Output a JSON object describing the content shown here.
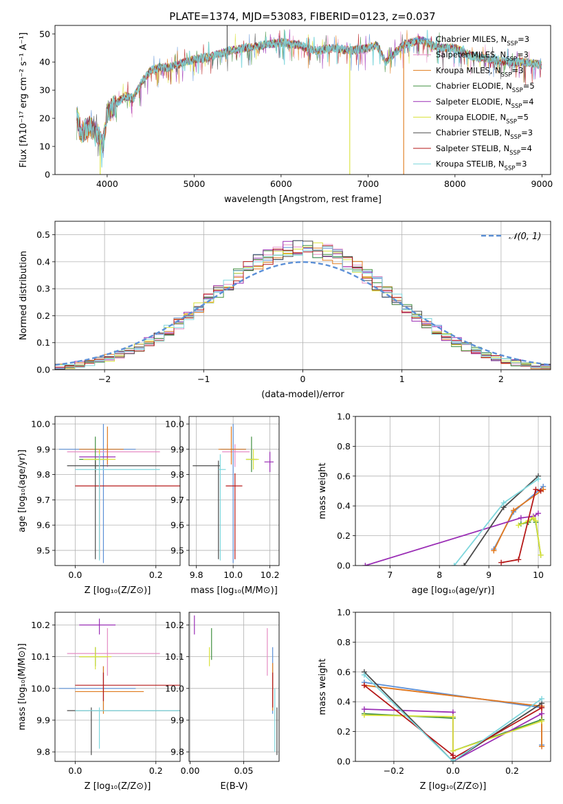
{
  "figure": {
    "title": "PLATE=1374, MJD=53083, FIBERID=0123, z=0.037"
  },
  "chart_data": [
    {
      "id": "spectrum",
      "type": "line",
      "title": "PLATE=1374, MJD=53083, FIBERID=0123, z=0.037",
      "xlabel": "wavelength [Angstrom, rest frame]",
      "ylabel": "Flux [fλ10⁻¹⁷ erg cm⁻² s⁻¹ A⁻¹]",
      "xlim": [
        3400,
        9100
      ],
      "ylim": [
        0,
        53
      ],
      "xticks": [
        4000,
        5000,
        6000,
        7000,
        8000,
        9000
      ],
      "yticks": [
        0,
        10,
        20,
        30,
        40,
        50
      ],
      "grid": false,
      "legend_position": "right",
      "continuum": {
        "x": [
          3650,
          3700,
          3800,
          3900,
          3950,
          4000,
          4100,
          4200,
          4300,
          4400,
          4500,
          4600,
          4700,
          4800,
          4900,
          5000,
          5200,
          5400,
          5600,
          5800,
          6000,
          6200,
          6400,
          6600,
          6800,
          7000,
          7100,
          7200,
          7400,
          7600,
          7800,
          8000,
          8200,
          8400,
          8600,
          8800,
          9000
        ],
        "y": [
          21,
          15,
          17,
          14,
          10,
          22,
          25,
          28,
          27,
          33,
          37,
          38,
          38,
          39,
          40,
          41,
          42,
          44,
          45,
          46,
          47,
          46,
          44,
          45,
          44,
          45,
          46,
          40,
          46,
          48,
          45,
          45,
          42,
          41,
          40,
          40,
          39
        ]
      },
      "series": [
        {
          "name": "Chabrier MILES, N_SSP=3",
          "color": "#5b8fd6"
        },
        {
          "name": "Salpeter MILES, N_SSP=3",
          "color": "#e58bc4"
        },
        {
          "name": "Kroupa MILES, N_SSP=3",
          "color": "#e07b1c"
        },
        {
          "name": "Chabrier ELODIE, N_SSP=5",
          "color": "#3f8f3f"
        },
        {
          "name": "Salpeter ELODIE, N_SSP=4",
          "color": "#9a2db5"
        },
        {
          "name": "Kroupa ELODIE, N_SSP=5",
          "color": "#d9e23a"
        },
        {
          "name": "Chabrier STELIB, N_SSP=3",
          "color": "#4a4a4a"
        },
        {
          "name": "Salpeter STELIB, N_SSP=4",
          "color": "#b51818"
        },
        {
          "name": "Kroupa STELIB, N_SSP=3",
          "color": "#7dd6dc"
        }
      ]
    },
    {
      "id": "residuals",
      "type": "histogram",
      "xlabel": "(data-model)/error",
      "ylabel": "Normed distribution",
      "xlim": [
        -2.5,
        2.5
      ],
      "ylim": [
        0,
        0.55
      ],
      "xticks": [
        -2,
        -1,
        0,
        1,
        2
      ],
      "yticks": [
        0.0,
        0.1,
        0.2,
        0.3,
        0.4,
        0.5
      ],
      "grid": true,
      "bin_width": 0.1,
      "legend": "𝒩(0, 1)",
      "legend_position": "top-right",
      "gaussian": {
        "mean": 0,
        "sigma": 1,
        "color": "#5b8fd6"
      }
    },
    {
      "id": "age-vs-Z",
      "type": "errorbar",
      "xlabel": "Z [log₁₀(Z/Z⊙)]",
      "ylabel": "age  [log₁₀(age/yr)]",
      "xlim": [
        -0.05,
        0.26
      ],
      "ylim": [
        9.44,
        10.03
      ],
      "xticks": [
        0.0,
        0.2
      ],
      "yticks": [
        9.5,
        9.6,
        9.7,
        9.8,
        9.9,
        10.0
      ],
      "grid": true,
      "points": [
        {
          "x": 0.07,
          "y": 9.9,
          "xerr": [
            0.11,
            0.08
          ],
          "yerr": [
            0.45,
            0.1
          ],
          "color": "#5b8fd6"
        },
        {
          "x": 0.08,
          "y": 9.89,
          "xerr": [
            0.1,
            0.13
          ],
          "yerr": [
            0.06,
            0.03
          ],
          "color": "#e58bc4"
        },
        {
          "x": 0.08,
          "y": 9.9,
          "xerr": [
            0.07,
            0.04
          ],
          "yerr": [
            0.06,
            0.09
          ],
          "color": "#e07b1c"
        },
        {
          "x": 0.05,
          "y": 9.86,
          "xerr": [
            0.04,
            0.03
          ],
          "yerr": [
            0.05,
            0.09
          ],
          "color": "#3f8f3f"
        },
        {
          "x": 0.06,
          "y": 9.87,
          "xerr": [
            0.05,
            0.04
          ],
          "yerr": [
            0.03,
            0.03
          ],
          "color": "#9a2db5"
        },
        {
          "x": 0.06,
          "y": 9.86,
          "xerr": [
            0.04,
            0.04
          ],
          "yerr": [
            0.04,
            0.04
          ],
          "color": "#d9e23a"
        },
        {
          "x": 0.05,
          "y": 9.835,
          "xerr": [
            0.07,
            0.21
          ],
          "yerr": [
            0.37,
            0.02
          ],
          "color": "#4a4a4a"
        },
        {
          "x": 0.06,
          "y": 9.755,
          "xerr": [
            0.06,
            0.2
          ],
          "yerr": [
            0.29,
            0.05
          ],
          "color": "#b51818"
        },
        {
          "x": 0.06,
          "y": 9.82,
          "xerr": [
            0.06,
            0.15
          ],
          "yerr": [
            0.36,
            0.06
          ],
          "color": "#7dd6dc"
        }
      ]
    },
    {
      "id": "age-vs-mass",
      "type": "errorbar",
      "xlabel": "mass [log₁₀(M/M⊙)]",
      "ylabel": "",
      "xlim": [
        9.76,
        10.25
      ],
      "ylim": [
        9.44,
        10.03
      ],
      "xticks": [
        9.8,
        10.0,
        10.2
      ],
      "yticks": [
        9.5,
        9.6,
        9.7,
        9.8,
        9.9,
        10.0
      ],
      "grid": true,
      "points": [
        {
          "x": 10.0,
          "y": 9.9,
          "xerr": [
            0.07,
            0.07
          ],
          "yerr": [
            0.45,
            0.1
          ],
          "color": "#5b8fd6"
        },
        {
          "x": 10.01,
          "y": 9.89,
          "xerr": [
            0.07,
            0.08
          ],
          "yerr": [
            0.06,
            0.03
          ],
          "color": "#e58bc4"
        },
        {
          "x": 9.99,
          "y": 9.9,
          "xerr": [
            0.07,
            0.08
          ],
          "yerr": [
            0.06,
            0.09
          ],
          "color": "#e07b1c"
        },
        {
          "x": 10.1,
          "y": 9.86,
          "xerr": [
            0.03,
            0.03
          ],
          "yerr": [
            0.05,
            0.09
          ],
          "color": "#3f8f3f"
        },
        {
          "x": 10.2,
          "y": 9.85,
          "xerr": [
            0.03,
            0.02
          ],
          "yerr": [
            0.04,
            0.04
          ],
          "color": "#9a2db5"
        },
        {
          "x": 10.11,
          "y": 9.86,
          "xerr": [
            0.04,
            0.03
          ],
          "yerr": [
            0.04,
            0.04
          ],
          "color": "#d9e23a"
        },
        {
          "x": 9.92,
          "y": 9.835,
          "xerr": [
            0.14,
            0.01
          ],
          "yerr": [
            0.37,
            0.02
          ],
          "color": "#4a4a4a"
        },
        {
          "x": 10.01,
          "y": 9.755,
          "xerr": [
            0.05,
            0.04
          ],
          "yerr": [
            0.29,
            0.05
          ],
          "color": "#b51818"
        },
        {
          "x": 9.93,
          "y": 9.82,
          "xerr": [
            0.01,
            0.03
          ],
          "yerr": [
            0.36,
            0.06
          ],
          "color": "#7dd6dc"
        }
      ]
    },
    {
      "id": "mass-weight-vs-age",
      "type": "line",
      "xlabel": "age  [log₁₀(age/yr)]",
      "ylabel": "mass weight",
      "xlim": [
        6.3,
        10.25
      ],
      "ylim": [
        0,
        1
      ],
      "xticks": [
        7,
        8,
        9,
        10
      ],
      "yticks": [
        0.0,
        0.2,
        0.4,
        0.6,
        0.8,
        1.0
      ],
      "grid": true,
      "marker": "+",
      "series": [
        {
          "color": "#5b8fd6",
          "x": [
            9.1,
            9.5,
            10.1
          ],
          "y": [
            0.11,
            0.36,
            0.53
          ]
        },
        {
          "color": "#e58bc4",
          "x": [
            9.1,
            9.5,
            10.1
          ],
          "y": [
            0.1,
            0.37,
            0.51
          ]
        },
        {
          "color": "#e07b1c",
          "x": [
            9.1,
            9.5,
            10.1
          ],
          "y": [
            0.1,
            0.37,
            0.51
          ]
        },
        {
          "color": "#3f8f3f",
          "x": [
            9.65,
            9.8,
            9.9,
            9.95,
            10.05
          ],
          "y": [
            0.28,
            0.29,
            0.32,
            0.29,
            0.07
          ]
        },
        {
          "color": "#9a2db5",
          "x": [
            6.5,
            9.65,
            9.9,
            10.0
          ],
          "y": [
            0.0,
            0.32,
            0.33,
            0.35
          ]
        },
        {
          "color": "#d9e23a",
          "x": [
            9.6,
            9.8,
            9.9,
            9.95,
            10.05
          ],
          "y": [
            0.27,
            0.3,
            0.32,
            0.3,
            0.07
          ]
        },
        {
          "color": "#4a4a4a",
          "x": [
            8.5,
            9.3,
            10.0
          ],
          "y": [
            0.0,
            0.39,
            0.6
          ]
        },
        {
          "color": "#b51818",
          "x": [
            9.25,
            9.6,
            9.95,
            10.05
          ],
          "y": [
            0.02,
            0.04,
            0.51,
            0.5
          ]
        },
        {
          "color": "#7dd6dc",
          "x": [
            8.3,
            9.3,
            10.0
          ],
          "y": [
            0.0,
            0.42,
            0.58
          ]
        }
      ]
    },
    {
      "id": "mass-vs-Z",
      "type": "errorbar",
      "xlabel": "Z [log₁₀(Z/Z⊙)]",
      "ylabel": "mass [log₁₀(M/M⊙)]",
      "xlim": [
        -0.05,
        0.26
      ],
      "ylim": [
        9.77,
        10.24
      ],
      "xticks": [
        0.0,
        0.2
      ],
      "yticks": [
        9.8,
        9.9,
        10.0,
        10.1,
        10.2
      ],
      "grid": true,
      "points": [
        {
          "x": 0.07,
          "y": 10.0,
          "xerr": [
            0.11,
            0.08
          ],
          "yerr": [
            0.07,
            0.07
          ],
          "color": "#5b8fd6"
        },
        {
          "x": 0.08,
          "y": 10.11,
          "xerr": [
            0.1,
            0.13
          ],
          "yerr": [
            0.07,
            0.08
          ],
          "color": "#e58bc4"
        },
        {
          "x": 0.07,
          "y": 9.99,
          "xerr": [
            0.07,
            0.1
          ],
          "yerr": [
            0.07,
            0.08
          ],
          "color": "#e07b1c"
        },
        {
          "x": 0.05,
          "y": 10.1,
          "xerr": [
            0.04,
            0.03
          ],
          "yerr": [
            0.03,
            0.03
          ],
          "color": "#3f8f3f"
        },
        {
          "x": 0.06,
          "y": 10.2,
          "xerr": [
            0.05,
            0.04
          ],
          "yerr": [
            0.03,
            0.02
          ],
          "color": "#9a2db5"
        },
        {
          "x": 0.05,
          "y": 10.1,
          "xerr": [
            0.04,
            0.04
          ],
          "yerr": [
            0.04,
            0.03
          ],
          "color": "#d9e23a"
        },
        {
          "x": 0.04,
          "y": 9.93,
          "xerr": [
            0.06,
            0.22
          ],
          "yerr": [
            0.14,
            0.01
          ],
          "color": "#4a4a4a"
        },
        {
          "x": 0.07,
          "y": 10.01,
          "xerr": [
            0.07,
            0.19
          ],
          "yerr": [
            0.05,
            0.04
          ],
          "color": "#b51818"
        },
        {
          "x": 0.06,
          "y": 9.93,
          "xerr": [
            0.06,
            0.2
          ],
          "yerr": [
            0.12,
            0.01
          ],
          "color": "#7dd6dc"
        }
      ]
    },
    {
      "id": "mass-vs-EBV",
      "type": "errorbar",
      "xlabel": "E(B-V)",
      "ylabel": "",
      "xlim": [
        -0.001,
        0.083
      ],
      "ylim": [
        9.77,
        10.24
      ],
      "xticks": [
        0.0,
        0.05
      ],
      "yticks": [
        9.8,
        9.9,
        10.0,
        10.1,
        10.2
      ],
      "grid": true,
      "points": [
        {
          "x": 0.077,
          "y": 10.02,
          "xerr": [
            0,
            0
          ],
          "yerr": [
            0.1,
            0.11
          ],
          "color": "#5b8fd6"
        },
        {
          "x": 0.072,
          "y": 10.11,
          "xerr": [
            0,
            0
          ],
          "yerr": [
            0.07,
            0.08
          ],
          "color": "#e58bc4"
        },
        {
          "x": 0.077,
          "y": 10.0,
          "xerr": [
            0,
            0
          ],
          "yerr": [
            0.07,
            0.08
          ],
          "color": "#e07b1c"
        },
        {
          "x": 0.02,
          "y": 10.13,
          "xerr": [
            0,
            0
          ],
          "yerr": [
            0.04,
            0.06
          ],
          "color": "#3f8f3f"
        },
        {
          "x": 0.004,
          "y": 10.2,
          "xerr": [
            0,
            0
          ],
          "yerr": [
            0.03,
            0.03
          ],
          "color": "#9a2db5"
        },
        {
          "x": 0.018,
          "y": 10.1,
          "xerr": [
            0,
            0
          ],
          "yerr": [
            0.03,
            0.03
          ],
          "color": "#d9e23a"
        },
        {
          "x": 0.081,
          "y": 9.86,
          "xerr": [
            0,
            0
          ],
          "yerr": [
            0.07,
            0.08
          ],
          "color": "#4a4a4a"
        },
        {
          "x": 0.077,
          "y": 9.99,
          "xerr": [
            0,
            0
          ],
          "yerr": [
            0.05,
            0.06
          ],
          "color": "#b51818"
        },
        {
          "x": 0.079,
          "y": 9.9,
          "xerr": [
            0,
            0
          ],
          "yerr": [
            0.1,
            0.1
          ],
          "color": "#7dd6dc"
        }
      ]
    },
    {
      "id": "mass-weight-vs-Z",
      "type": "line",
      "xlabel": "Z [log₁₀(Z/Z⊙)]",
      "ylabel": "mass weight",
      "xlim": [
        -0.33,
        0.33
      ],
      "ylim": [
        0,
        1
      ],
      "xticks": [
        -0.2,
        0.0,
        0.2
      ],
      "yticks": [
        0.0,
        0.2,
        0.4,
        0.6,
        0.8,
        1.0
      ],
      "grid": true,
      "marker": "+",
      "series": [
        {
          "color": "#5b8fd6",
          "x": [
            -0.3,
            0.3,
            0.3
          ],
          "y": [
            0.53,
            0.36,
            0.11
          ]
        },
        {
          "color": "#e58bc4",
          "x": [
            -0.3,
            0.3,
            0.3
          ],
          "y": [
            0.51,
            0.37,
            0.1
          ]
        },
        {
          "color": "#e07b1c",
          "x": [
            -0.3,
            0.3,
            0.3
          ],
          "y": [
            0.51,
            0.37,
            0.1
          ]
        },
        {
          "color": "#3f8f3f",
          "x": [
            -0.3,
            0.0,
            0.0,
            0.3
          ],
          "y": [
            0.32,
            0.29,
            0.07,
            0.28
          ]
        },
        {
          "color": "#9a2db5",
          "x": [
            -0.3,
            0.0,
            0.0,
            0.3
          ],
          "y": [
            0.35,
            0.33,
            0.0,
            0.32
          ]
        },
        {
          "color": "#d9e23a",
          "x": [
            -0.3,
            0.0,
            0.0,
            0.3
          ],
          "y": [
            0.31,
            0.3,
            0.07,
            0.27
          ]
        },
        {
          "color": "#4a4a4a",
          "x": [
            -0.3,
            0.0,
            0.3
          ],
          "y": [
            0.6,
            0.0,
            0.39
          ]
        },
        {
          "color": "#b51818",
          "x": [
            -0.3,
            0.0,
            0.0,
            0.3
          ],
          "y": [
            0.51,
            0.04,
            0.02,
            0.36
          ]
        },
        {
          "color": "#7dd6dc",
          "x": [
            -0.3,
            0.0,
            0.3
          ],
          "y": [
            0.58,
            0.0,
            0.42
          ]
        }
      ]
    }
  ]
}
